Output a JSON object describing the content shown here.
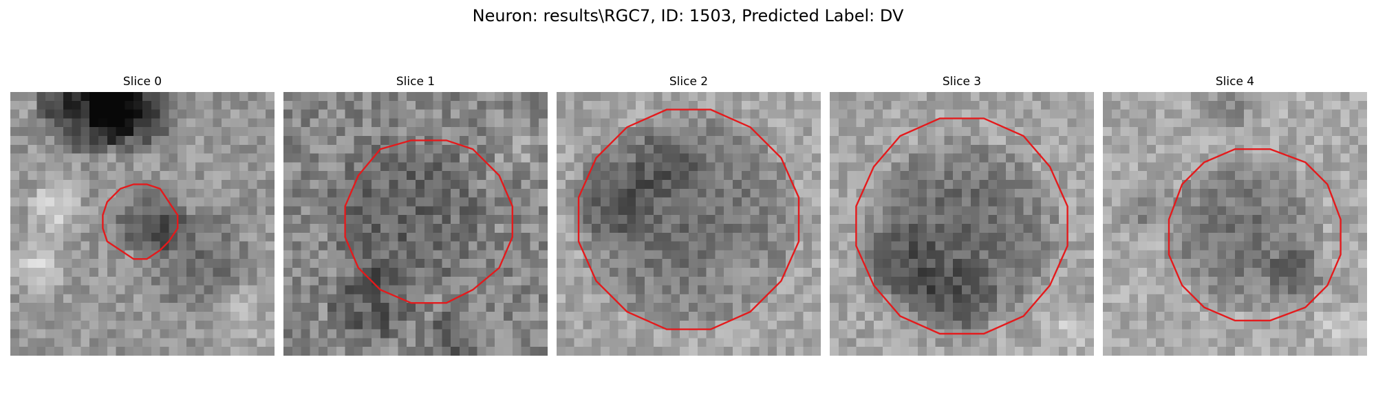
{
  "figure": {
    "title": "Neuron: results\\RGC7, ID: 1503, Predicted Label: DV"
  },
  "panels": [
    {
      "title": "Slice 0"
    },
    {
      "title": "Slice 1"
    },
    {
      "title": "Slice 2"
    },
    {
      "title": "Slice 3"
    },
    {
      "title": "Slice 4"
    }
  ],
  "colors": {
    "contour": "#e41a1c",
    "background": "#ffffff"
  }
}
